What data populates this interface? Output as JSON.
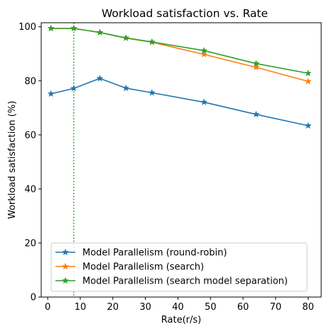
{
  "chart_data": {
    "type": "line",
    "title": "Workload satisfaction vs. Rate",
    "xlabel": "Rate(r/s)",
    "ylabel": "Workload satisfaction (%)",
    "xlim": [
      -2,
      84
    ],
    "ylim": [
      0,
      101.5
    ],
    "xticks": [
      0,
      10,
      20,
      30,
      40,
      50,
      60,
      70,
      80
    ],
    "yticks": [
      0,
      20,
      40,
      60,
      80,
      100
    ],
    "grid": false,
    "legend_position": "bottom-left",
    "vline": {
      "x": 8,
      "color": "#2ca02c",
      "style": "dotted"
    },
    "series": [
      {
        "name": "Model Parallelism (round-robin)",
        "color": "#1f77b4",
        "marker": "star",
        "x": [
          1,
          8,
          16,
          24,
          32,
          48,
          64,
          80
        ],
        "y": [
          75.2,
          77.2,
          80.9,
          77.3,
          75.6,
          72.1,
          67.6,
          63.4
        ]
      },
      {
        "name": "Model Parallelism (search)",
        "color": "#ff7f0e",
        "marker": "star",
        "x": [
          1,
          8,
          16,
          24,
          32,
          48,
          64,
          80
        ],
        "y": [
          99.4,
          99.4,
          97.9,
          95.8,
          94.3,
          89.8,
          85.0,
          79.8
        ]
      },
      {
        "name": "Model Parallelism (search model separation)",
        "color": "#2ca02c",
        "marker": "star",
        "x": [
          1,
          8,
          16,
          24,
          32,
          48,
          64,
          80
        ],
        "y": [
          99.4,
          99.4,
          97.9,
          95.9,
          94.4,
          91.2,
          86.4,
          82.8
        ]
      }
    ]
  }
}
